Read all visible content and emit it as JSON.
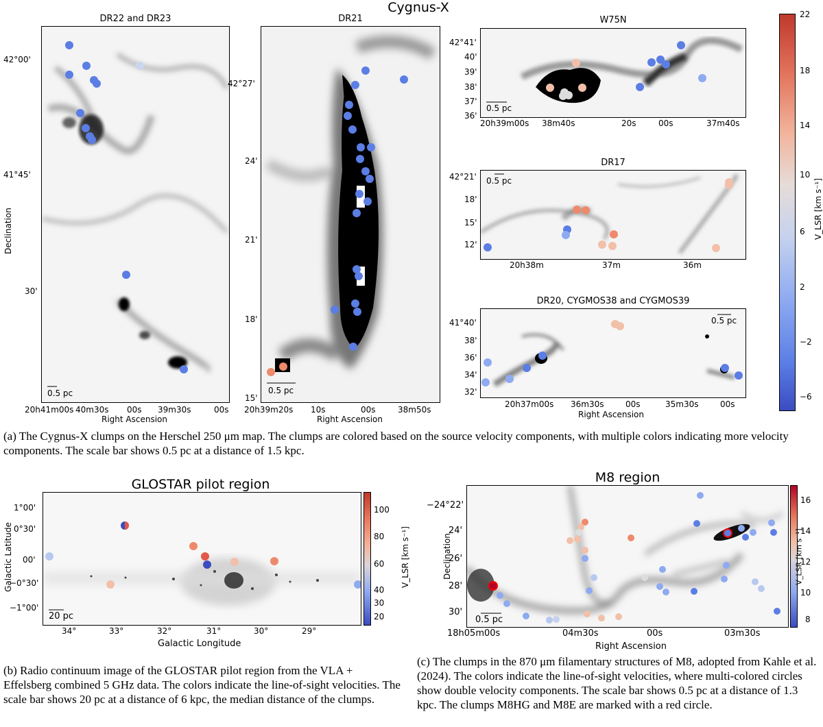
{
  "figure_title": "Cygnus-X",
  "panels": {
    "dr22": {
      "title": "DR22 and DR23",
      "dec_ticks": [
        "42°00'",
        "41°45'",
        "30'"
      ],
      "ra_ticks": [
        "20h41m00s",
        "40m30s",
        "00s",
        "39m30s",
        "00s"
      ],
      "scale": "0.5 pc",
      "xlabel": "Right Ascension",
      "ylabel": "Declination"
    },
    "dr21": {
      "title": "DR21",
      "dec_ticks": [
        "42°27'",
        "24'",
        "21'",
        "18'",
        "15'"
      ],
      "ra_ticks": [
        "20h39m20s",
        "10s",
        "00s",
        "38m50s"
      ],
      "scale": "0.5 pc",
      "xlabel": "Right Ascension"
    },
    "w75n": {
      "title": "W75N",
      "dec_ticks": [
        "42°41'",
        "40'",
        "39'",
        "38'",
        "37'",
        "36'"
      ],
      "ra_ticks": [
        "20h39m00s",
        "38m40s",
        "20s",
        "00s",
        "37m40s"
      ],
      "scale": "0.5 pc"
    },
    "dr17": {
      "title": "DR17",
      "dec_ticks": [
        "42°21'",
        "18'",
        "15'",
        "12'"
      ],
      "ra_ticks": [
        "20h38m",
        "37m",
        "36m"
      ],
      "scale": "0.5 pc"
    },
    "dr20": {
      "title": "DR20, CYGMOS38 and CYGMOS39",
      "dec_ticks": [
        "41°40'",
        "38'",
        "36'",
        "34'",
        "32'"
      ],
      "ra_ticks": [
        "20h37m00s",
        "36m30s",
        "00s",
        "35m30s",
        "00s"
      ],
      "scale": "0.5 pc",
      "xlabel": "Right Ascension"
    },
    "colorbar": {
      "ticks": [
        "22",
        "18",
        "14",
        "10",
        "6",
        "2",
        "−2",
        "−6"
      ],
      "label": "V_LSR [km s⁻¹]"
    }
  },
  "caption_a": "(a) The Cygnus-X clumps on the Herschel 250 μm map. The clumps are colored based on the source velocity components, with multiple colors indicating more velocity components. The scale bar shows 0.5 pc at a distance of 1.5 kpc.",
  "glostar": {
    "title": "GLOSTAR pilot region",
    "lat_ticks": [
      "1°00'",
      "0°30'",
      "00'",
      "−0°30'",
      "−1°00'"
    ],
    "lon_ticks": [
      "34°",
      "33°",
      "32°",
      "31°",
      "30°",
      "29°"
    ],
    "xlabel": "Galactic Longitude",
    "ylabel": "Galactic Latitude",
    "scale": "20 pc",
    "cbar_ticks": [
      "100",
      "80",
      "60",
      "40",
      "30",
      "20"
    ],
    "cbar_label": "V_LSR [km s⁻¹]"
  },
  "caption_b": "(b) Radio continuum image of the GLOSTAR pilot region from the VLA + Effelsberg combined 5 GHz data. The colors indicate the line-of-sight velocities. The scale bar shows 20 pc at a distance of 6 kpc, the median distance of the clumps.",
  "m8": {
    "title": "M8 region",
    "dec_ticks": [
      "−24°22'",
      "24'",
      "26'",
      "28'",
      "30'"
    ],
    "ra_ticks": [
      "18h05m00s",
      "04m30s",
      "00s",
      "03m30s"
    ],
    "xlabel": "Right Ascension",
    "ylabel": "Declination",
    "scale": "0.5 pc",
    "cbar_ticks": [
      "16",
      "14",
      "12",
      "10",
      "8"
    ],
    "cbar_label": "V_LSR [km s⁻¹]"
  },
  "caption_c": "(c) The clumps in the 870 μm filamentary structures of M8, adopted from Kahle et al. (2024). The colors indicate the line-of-sight velocities, where multi-colored circles show double velocity components. The scale bar shows 0.5 pc at a distance of 1.3 kpc. The clumps M8HG and M8E are marked with a red circle.",
  "colors": {
    "blue": "#5b7ee5",
    "lightblue": "#8eaaf0",
    "salmon": "#ee8a6c",
    "peach": "#f2c0a8",
    "red": "#e2584a",
    "darkred": "#b40426"
  }
}
